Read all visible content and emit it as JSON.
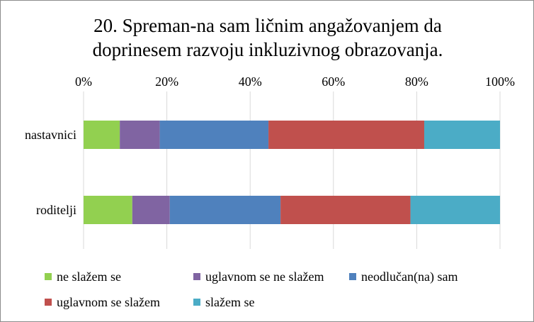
{
  "title": {
    "line1": "20. Spreman-na sam ličnim angažovanjem da",
    "line2": "doprinesem razvoju inkluzivnog obrazovanja."
  },
  "chart_data": {
    "type": "bar",
    "orientation": "horizontal",
    "stacked": "percent",
    "categories": [
      "nastavnici",
      "roditelji"
    ],
    "x_tick_labels": [
      "0%",
      "20%",
      "40%",
      "60%",
      "80%",
      "100%"
    ],
    "xlim": [
      0,
      100
    ],
    "grid": "vertical",
    "legend_position": "bottom",
    "series": [
      {
        "name": "ne slažem se",
        "color": "#92d050",
        "values": [
          8.7,
          11.7
        ]
      },
      {
        "name": "uglavnom se ne slažem",
        "color": "#8064a2",
        "values": [
          9.6,
          9.0
        ]
      },
      {
        "name": "neodlučan(na) sam",
        "color": "#4f81bd",
        "values": [
          26.1,
          26.6
        ]
      },
      {
        "name": "uglavnom se slažem",
        "color": "#c0504d",
        "values": [
          37.4,
          31.2
        ]
      },
      {
        "name": "slažem se",
        "color": "#4bacc6",
        "values": [
          18.2,
          21.5
        ]
      }
    ]
  }
}
